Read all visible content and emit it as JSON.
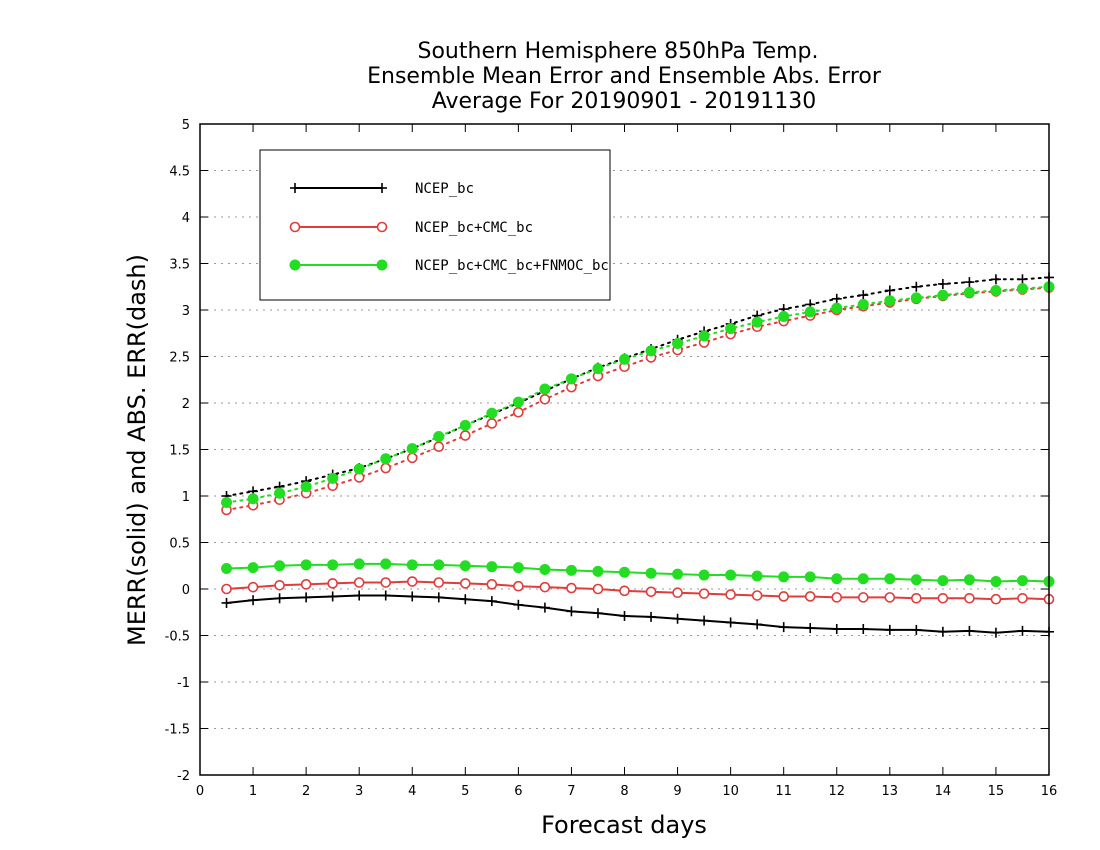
{
  "chart_data": {
    "type": "line",
    "title_lines": [
      "Southern Hemisphere 850hPa Temp.",
      "Ensemble Mean Error and Ensemble Abs. Error",
      "Average For 20190901 - 20191130"
    ],
    "xlabel": "Forecast days",
    "ylabel": "MERR(solid) and ABS. ERR(dash)",
    "xlim": [
      0,
      16
    ],
    "ylim": [
      -2,
      5
    ],
    "xticks": [
      0,
      1,
      2,
      3,
      4,
      5,
      6,
      7,
      8,
      9,
      10,
      11,
      12,
      13,
      14,
      15,
      16
    ],
    "yticks": [
      -2,
      -1.5,
      -1,
      -0.5,
      0,
      0.5,
      1,
      1.5,
      2,
      2.5,
      3,
      3.5,
      4,
      4.5,
      5
    ],
    "ytick_labels": [
      "-2",
      "-1.5",
      "-1",
      "-0.5",
      "0",
      "0.5",
      "1",
      "1.5",
      "2",
      "2.5",
      "3",
      "3.5",
      "4",
      "4.5",
      "5"
    ],
    "grid": "horizontal dotted",
    "legend_position": "top-left",
    "x": [
      0.5,
      1,
      1.5,
      2,
      2.5,
      3,
      3.5,
      4,
      4.5,
      5,
      5.5,
      6,
      6.5,
      7,
      7.5,
      8,
      8.5,
      9,
      9.5,
      10,
      10.5,
      11,
      11.5,
      12,
      12.5,
      13,
      13.5,
      14,
      14.5,
      15,
      15.5,
      16
    ],
    "series": [
      {
        "name": "NCEP_bc",
        "color": "#000000",
        "marker": "plus",
        "merr": [
          -0.15,
          -0.12,
          -0.1,
          -0.09,
          -0.08,
          -0.07,
          -0.07,
          -0.08,
          -0.09,
          -0.11,
          -0.13,
          -0.17,
          -0.2,
          -0.24,
          -0.26,
          -0.29,
          -0.3,
          -0.32,
          -0.34,
          -0.36,
          -0.38,
          -0.41,
          -0.42,
          -0.43,
          -0.43,
          -0.44,
          -0.44,
          -0.46,
          -0.45,
          -0.47,
          -0.45,
          -0.46
        ],
        "abs_err": [
          1.0,
          1.05,
          1.1,
          1.16,
          1.23,
          1.3,
          1.4,
          1.51,
          1.63,
          1.76,
          1.88,
          2.0,
          2.13,
          2.26,
          2.38,
          2.48,
          2.58,
          2.68,
          2.77,
          2.85,
          2.94,
          3.01,
          3.06,
          3.12,
          3.16,
          3.21,
          3.25,
          3.28,
          3.3,
          3.33,
          3.33,
          3.35
        ]
      },
      {
        "name": "NCEP_bc+CMC_bc",
        "color": "#e03c3c",
        "marker": "open-circle",
        "merr": [
          0.0,
          0.02,
          0.04,
          0.05,
          0.06,
          0.07,
          0.07,
          0.08,
          0.07,
          0.06,
          0.05,
          0.03,
          0.02,
          0.01,
          0.0,
          -0.02,
          -0.03,
          -0.04,
          -0.05,
          -0.06,
          -0.07,
          -0.08,
          -0.08,
          -0.09,
          -0.09,
          -0.09,
          -0.1,
          -0.1,
          -0.1,
          -0.11,
          -0.1,
          -0.11
        ],
        "abs_err": [
          0.85,
          0.9,
          0.96,
          1.03,
          1.11,
          1.2,
          1.3,
          1.41,
          1.53,
          1.65,
          1.78,
          1.9,
          2.04,
          2.17,
          2.29,
          2.39,
          2.49,
          2.57,
          2.65,
          2.74,
          2.82,
          2.88,
          2.94,
          3.0,
          3.04,
          3.08,
          3.12,
          3.15,
          3.18,
          3.2,
          3.22,
          3.24
        ]
      },
      {
        "name": "NCEP_bc+CMC_bc+FNMOC_bc",
        "color": "#22dd22",
        "marker": "filled-circle",
        "merr": [
          0.22,
          0.23,
          0.25,
          0.26,
          0.26,
          0.27,
          0.27,
          0.26,
          0.26,
          0.25,
          0.24,
          0.23,
          0.21,
          0.2,
          0.19,
          0.18,
          0.17,
          0.16,
          0.15,
          0.15,
          0.14,
          0.13,
          0.13,
          0.11,
          0.11,
          0.11,
          0.1,
          0.09,
          0.1,
          0.08,
          0.09,
          0.08
        ],
        "abs_err": [
          0.93,
          0.97,
          1.03,
          1.1,
          1.19,
          1.29,
          1.4,
          1.51,
          1.64,
          1.76,
          1.89,
          2.01,
          2.15,
          2.26,
          2.37,
          2.47,
          2.56,
          2.64,
          2.72,
          2.8,
          2.87,
          2.93,
          2.98,
          3.02,
          3.06,
          3.1,
          3.13,
          3.16,
          3.19,
          3.21,
          3.23,
          3.25
        ]
      }
    ]
  }
}
